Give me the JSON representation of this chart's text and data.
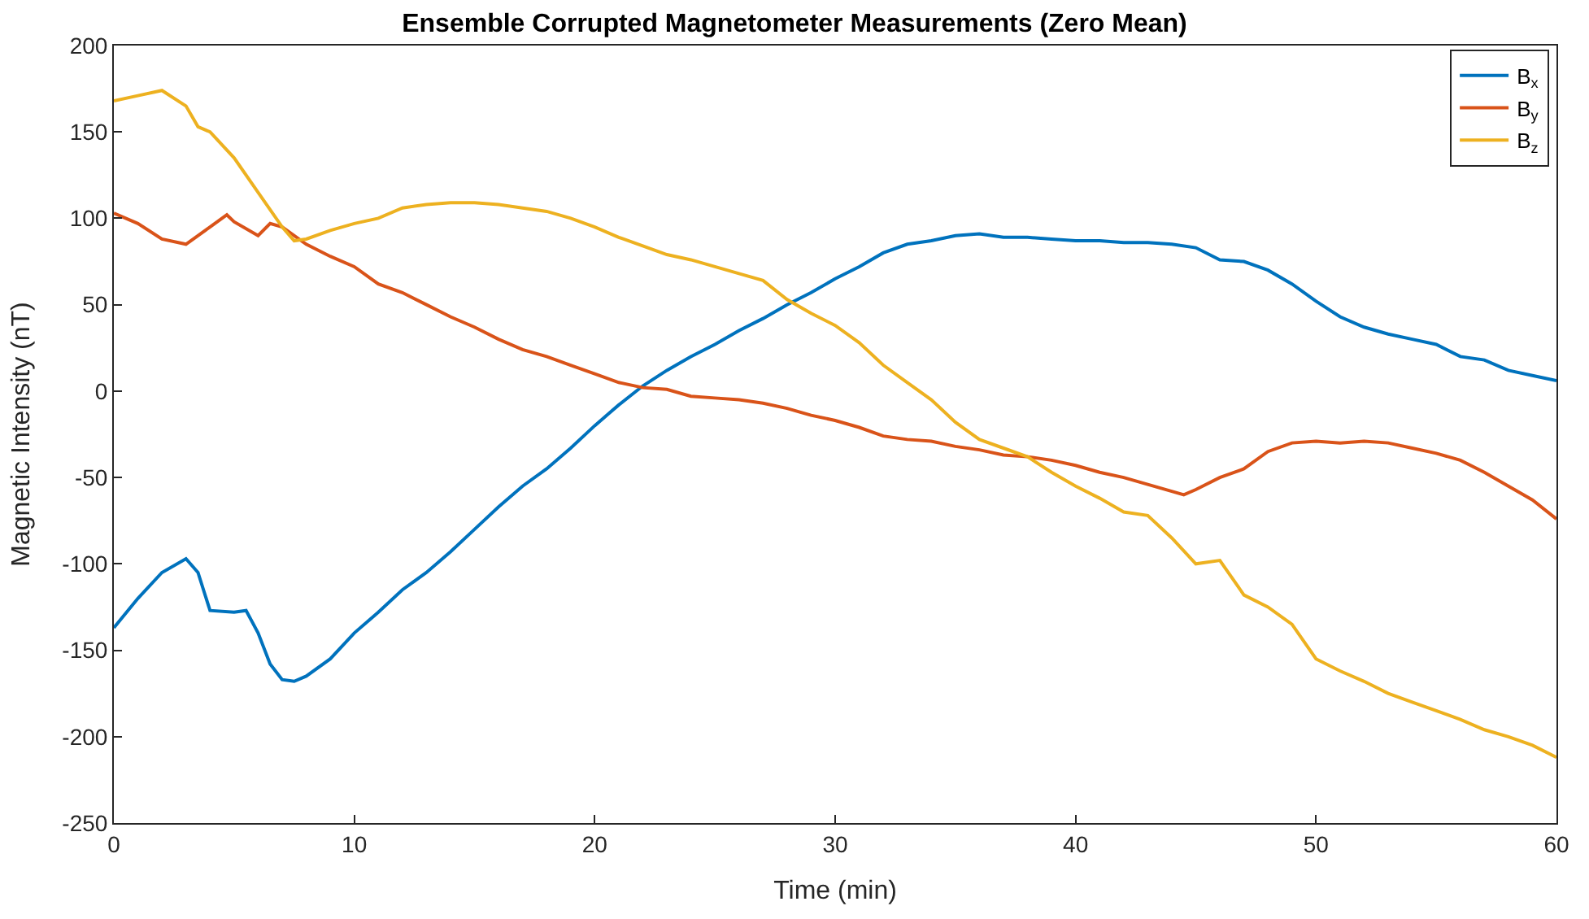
{
  "chart_data": {
    "type": "line",
    "title": "Ensemble Corrupted Magnetometer Measurements (Zero Mean)",
    "xlabel": "Time (min)",
    "ylabel": "Magnetic Intensity (nT)",
    "xlim": [
      0,
      60
    ],
    "xticks": [
      0,
      10,
      20,
      30,
      40,
      50,
      60
    ],
    "ylim": [
      -250,
      200
    ],
    "yticks": [
      -250,
      -200,
      -150,
      -100,
      -50,
      0,
      50,
      100,
      150,
      200
    ],
    "legend": "top right",
    "marker": "none",
    "line_style": "solid",
    "series": [
      {
        "name": "B$_{x}$",
        "color": "#0072bd",
        "x": [
          0,
          1,
          2,
          3,
          3.5,
          4,
          5,
          5.5,
          6,
          6.5,
          7,
          7.5,
          8,
          9,
          10,
          11,
          12,
          13,
          14,
          15,
          16,
          17,
          18,
          19,
          20,
          21,
          22,
          23,
          24,
          25,
          26,
          27,
          28,
          29,
          30,
          31,
          32,
          33,
          34,
          35,
          36,
          37,
          38,
          39,
          40,
          41,
          42,
          43,
          44,
          45,
          46,
          47,
          48,
          49,
          50,
          51,
          52,
          53,
          54,
          55,
          56,
          57,
          58,
          59,
          60
        ],
        "values": [
          -137,
          -120,
          -105,
          -97,
          -105,
          -127,
          -128,
          -127,
          -140,
          -158,
          -167,
          -168,
          -165,
          -155,
          -140,
          -128,
          -115,
          -105,
          -93,
          -80,
          -67,
          -55,
          -45,
          -33,
          -20,
          -8,
          3,
          12,
          20,
          27,
          35,
          42,
          50,
          57,
          65,
          72,
          80,
          85,
          87,
          90,
          91,
          89,
          89,
          88,
          87,
          87,
          86,
          86,
          85,
          83,
          76,
          75,
          70,
          62,
          52,
          43,
          37,
          33,
          30,
          27,
          20,
          18,
          12,
          9,
          6
        ]
      },
      {
        "name": "B$_{y}$",
        "color": "#d95319",
        "x": [
          0,
          1,
          2,
          3,
          4,
          4.7,
          5,
          6,
          6.5,
          7,
          8,
          9,
          10,
          11,
          12,
          13,
          14,
          15,
          16,
          17,
          18,
          19,
          20,
          21,
          22,
          23,
          24,
          25,
          26,
          27,
          28,
          29,
          30,
          31,
          32,
          33,
          34,
          35,
          36,
          37,
          38,
          39,
          40,
          41,
          42,
          43,
          44,
          44.5,
          45,
          46,
          47,
          48,
          49,
          50,
          51,
          52,
          53,
          54,
          55,
          56,
          57,
          58,
          59,
          60
        ],
        "values": [
          103,
          97,
          88,
          85,
          95,
          102,
          98,
          90,
          97,
          95,
          85,
          78,
          72,
          62,
          57,
          50,
          43,
          37,
          30,
          24,
          20,
          15,
          10,
          5,
          2,
          1,
          -3,
          -4,
          -5,
          -7,
          -10,
          -14,
          -17,
          -21,
          -26,
          -28,
          -29,
          -32,
          -34,
          -37,
          -38,
          -40,
          -43,
          -47,
          -50,
          -54,
          -58,
          -60,
          -57,
          -50,
          -45,
          -35,
          -30,
          -29,
          -30,
          -29,
          -30,
          -33,
          -36,
          -40,
          -47,
          -55,
          -63,
          -74
        ]
      },
      {
        "name": "B$_{z}$",
        "color": "#edb120",
        "x": [
          0,
          1,
          2,
          3,
          3.5,
          4,
          5,
          6,
          7,
          7.5,
          8,
          9,
          10,
          11,
          12,
          13,
          14,
          15,
          16,
          17,
          18,
          19,
          20,
          21,
          22,
          23,
          24,
          25,
          26,
          27,
          28,
          29,
          30,
          31,
          32,
          33,
          34,
          35,
          36,
          37,
          38,
          39,
          40,
          41,
          42,
          43,
          44,
          45,
          46,
          47,
          48,
          49,
          50,
          51,
          52,
          53,
          54,
          55,
          56,
          57,
          58,
          59,
          60
        ],
        "values": [
          168,
          171,
          174,
          165,
          153,
          150,
          135,
          115,
          95,
          87,
          88,
          93,
          97,
          100,
          106,
          108,
          109,
          109,
          108,
          106,
          104,
          100,
          95,
          89,
          84,
          79,
          76,
          72,
          68,
          64,
          53,
          45,
          38,
          28,
          15,
          5,
          -5,
          -18,
          -28,
          -33,
          -38,
          -47,
          -55,
          -62,
          -70,
          -72,
          -85,
          -100,
          -98,
          -118,
          -125,
          -135,
          -155,
          -162,
          -168,
          -175,
          -180,
          -185,
          -190,
          -196,
          -200,
          -205,
          -212
        ]
      }
    ]
  }
}
